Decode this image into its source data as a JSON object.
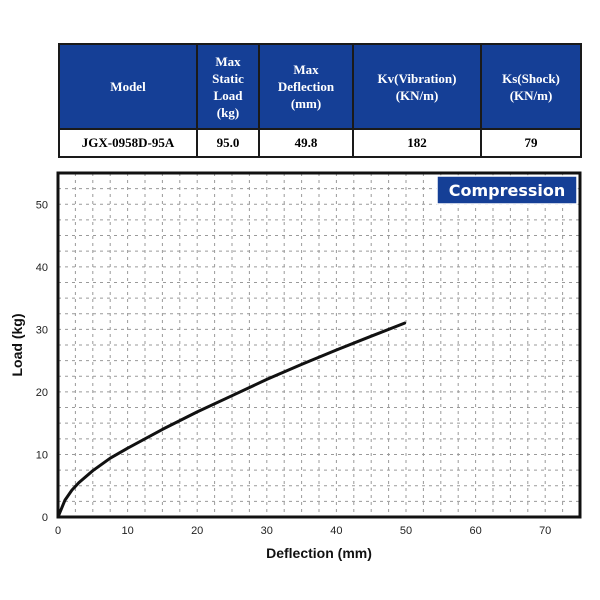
{
  "spec_table": {
    "headers": [
      {
        "lines": [
          "Model"
        ]
      },
      {
        "lines": [
          "Max",
          "Static",
          "Load",
          "(kg)"
        ]
      },
      {
        "lines": [
          "Max",
          "Deflection",
          "(mm)"
        ]
      },
      {
        "lines": [
          "Kv(Vibration)",
          "(KN/m)"
        ]
      },
      {
        "lines": [
          "Ks(Shock)",
          "(KN/m)"
        ]
      }
    ],
    "row": [
      "JGX-0958D-95A",
      "95.0",
      "49.8",
      "182",
      "79"
    ]
  },
  "colors": {
    "header_bg": "#153f96",
    "header_text": "#ffffff",
    "badge_bg": "#153f96",
    "curve": "#111111",
    "grid": "#9a9a9a"
  },
  "chart_data": {
    "type": "line",
    "badge": "Compression",
    "xlabel": "Deflection (mm)",
    "ylabel": "Load (kg)",
    "xlim": [
      0,
      75
    ],
    "ylim": [
      0,
      55
    ],
    "xticks": [
      0,
      10,
      20,
      30,
      40,
      50,
      60,
      70
    ],
    "yticks": [
      0,
      10,
      20,
      30,
      40,
      50
    ],
    "grid": true,
    "series": [
      {
        "x": [
          0,
          1,
          2,
          3,
          5,
          7.5,
          10,
          15,
          20,
          25,
          30,
          35,
          40,
          45,
          49.8
        ],
        "y": [
          0,
          2.7,
          4.3,
          5.5,
          7.4,
          9.4,
          11.0,
          14.0,
          16.8,
          19.4,
          22.0,
          24.4,
          26.7,
          28.9,
          31.0
        ]
      }
    ]
  }
}
